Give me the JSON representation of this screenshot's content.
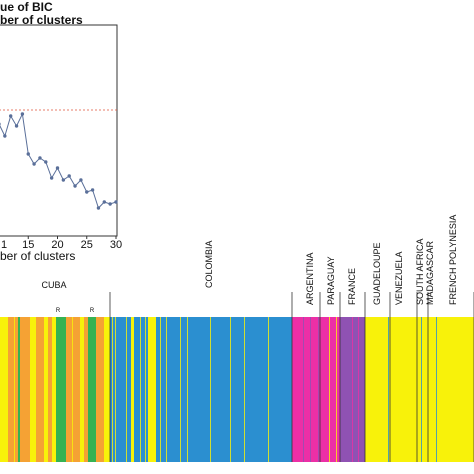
{
  "chart_data": [
    {
      "type": "line",
      "title": "ue of BIC",
      "subtitle": "ber of clusters",
      "xlabel": "ber of clusters",
      "ylabel": "",
      "x_ticks": [
        "15",
        "20",
        "25",
        "30"
      ],
      "x_partial_tick": "1",
      "xlim": [
        10,
        30
      ],
      "x": [
        10,
        11,
        12,
        13,
        14,
        15,
        16,
        17,
        18,
        19,
        20,
        21,
        22,
        23,
        24,
        25,
        26,
        27,
        28,
        29,
        30
      ],
      "y": [
        0.53,
        0.47,
        0.57,
        0.52,
        0.58,
        0.38,
        0.33,
        0.36,
        0.34,
        0.26,
        0.31,
        0.25,
        0.27,
        0.22,
        0.25,
        0.19,
        0.2,
        0.11,
        0.14,
        0.13,
        0.14
      ],
      "reference_line": 0.6,
      "colors": {
        "line": "#5a6f99",
        "reference": "#e0533a"
      }
    },
    {
      "type": "bar",
      "description_kind": "structure plot",
      "populations": [
        {
          "name": "CUBA",
          "start": 0,
          "end": 110
        },
        {
          "name": "COLOMBIA",
          "start": 110,
          "end": 292
        },
        {
          "name": "ARGENTINA",
          "start": 292,
          "end": 320
        },
        {
          "name": "PARAGUAY",
          "start": 320,
          "end": 340
        },
        {
          "name": "FRANCE",
          "start": 340,
          "end": 365
        },
        {
          "name": "GUADELOUPE",
          "start": 365,
          "end": 390
        },
        {
          "name": "VENEZUELA",
          "start": 390,
          "end": 417
        },
        {
          "name": "SOUTH AFRICA",
          "start": 417,
          "end": 428
        },
        {
          "name": "MADAGASCAR",
          "start": 428,
          "end": 432
        },
        {
          "name": "FRENCH POLYNESIA",
          "start": 432,
          "end": 474
        }
      ],
      "markers": [
        {
          "label": "R",
          "position": 58
        },
        {
          "label": "R",
          "position": 92
        }
      ],
      "clusters": {
        "orange": "#f5a234",
        "green": "#35b252",
        "yellow": "#f8f20a",
        "blue": "#2b8fd0",
        "magenta": "#ec2fa6",
        "purple": "#8f52b3"
      },
      "segments": [
        [
          "yellow",
          0,
          8
        ],
        [
          "orange",
          8,
          18
        ],
        [
          "green",
          18,
          20
        ],
        [
          "orange",
          20,
          30
        ],
        [
          "yellow",
          30,
          36
        ],
        [
          "orange",
          36,
          44
        ],
        [
          "yellow",
          44,
          48
        ],
        [
          "orange",
          48,
          52
        ],
        [
          "yellow",
          52,
          56
        ],
        [
          "green",
          56,
          66
        ],
        [
          "orange",
          66,
          80
        ],
        [
          "yellow",
          80,
          84
        ],
        [
          "orange",
          84,
          88
        ],
        [
          "green",
          88,
          96
        ],
        [
          "orange",
          96,
          104
        ],
        [
          "yellow",
          104,
          110
        ],
        [
          "blue",
          110,
          131
        ],
        [
          "yellow",
          131,
          134
        ],
        [
          "blue",
          134,
          148
        ],
        [
          "yellow",
          148,
          156
        ],
        [
          "blue",
          156,
          292
        ],
        [
          "magenta",
          292,
          340
        ],
        [
          "purple",
          340,
          365
        ],
        [
          "yellow",
          365,
          474
        ]
      ]
    }
  ]
}
